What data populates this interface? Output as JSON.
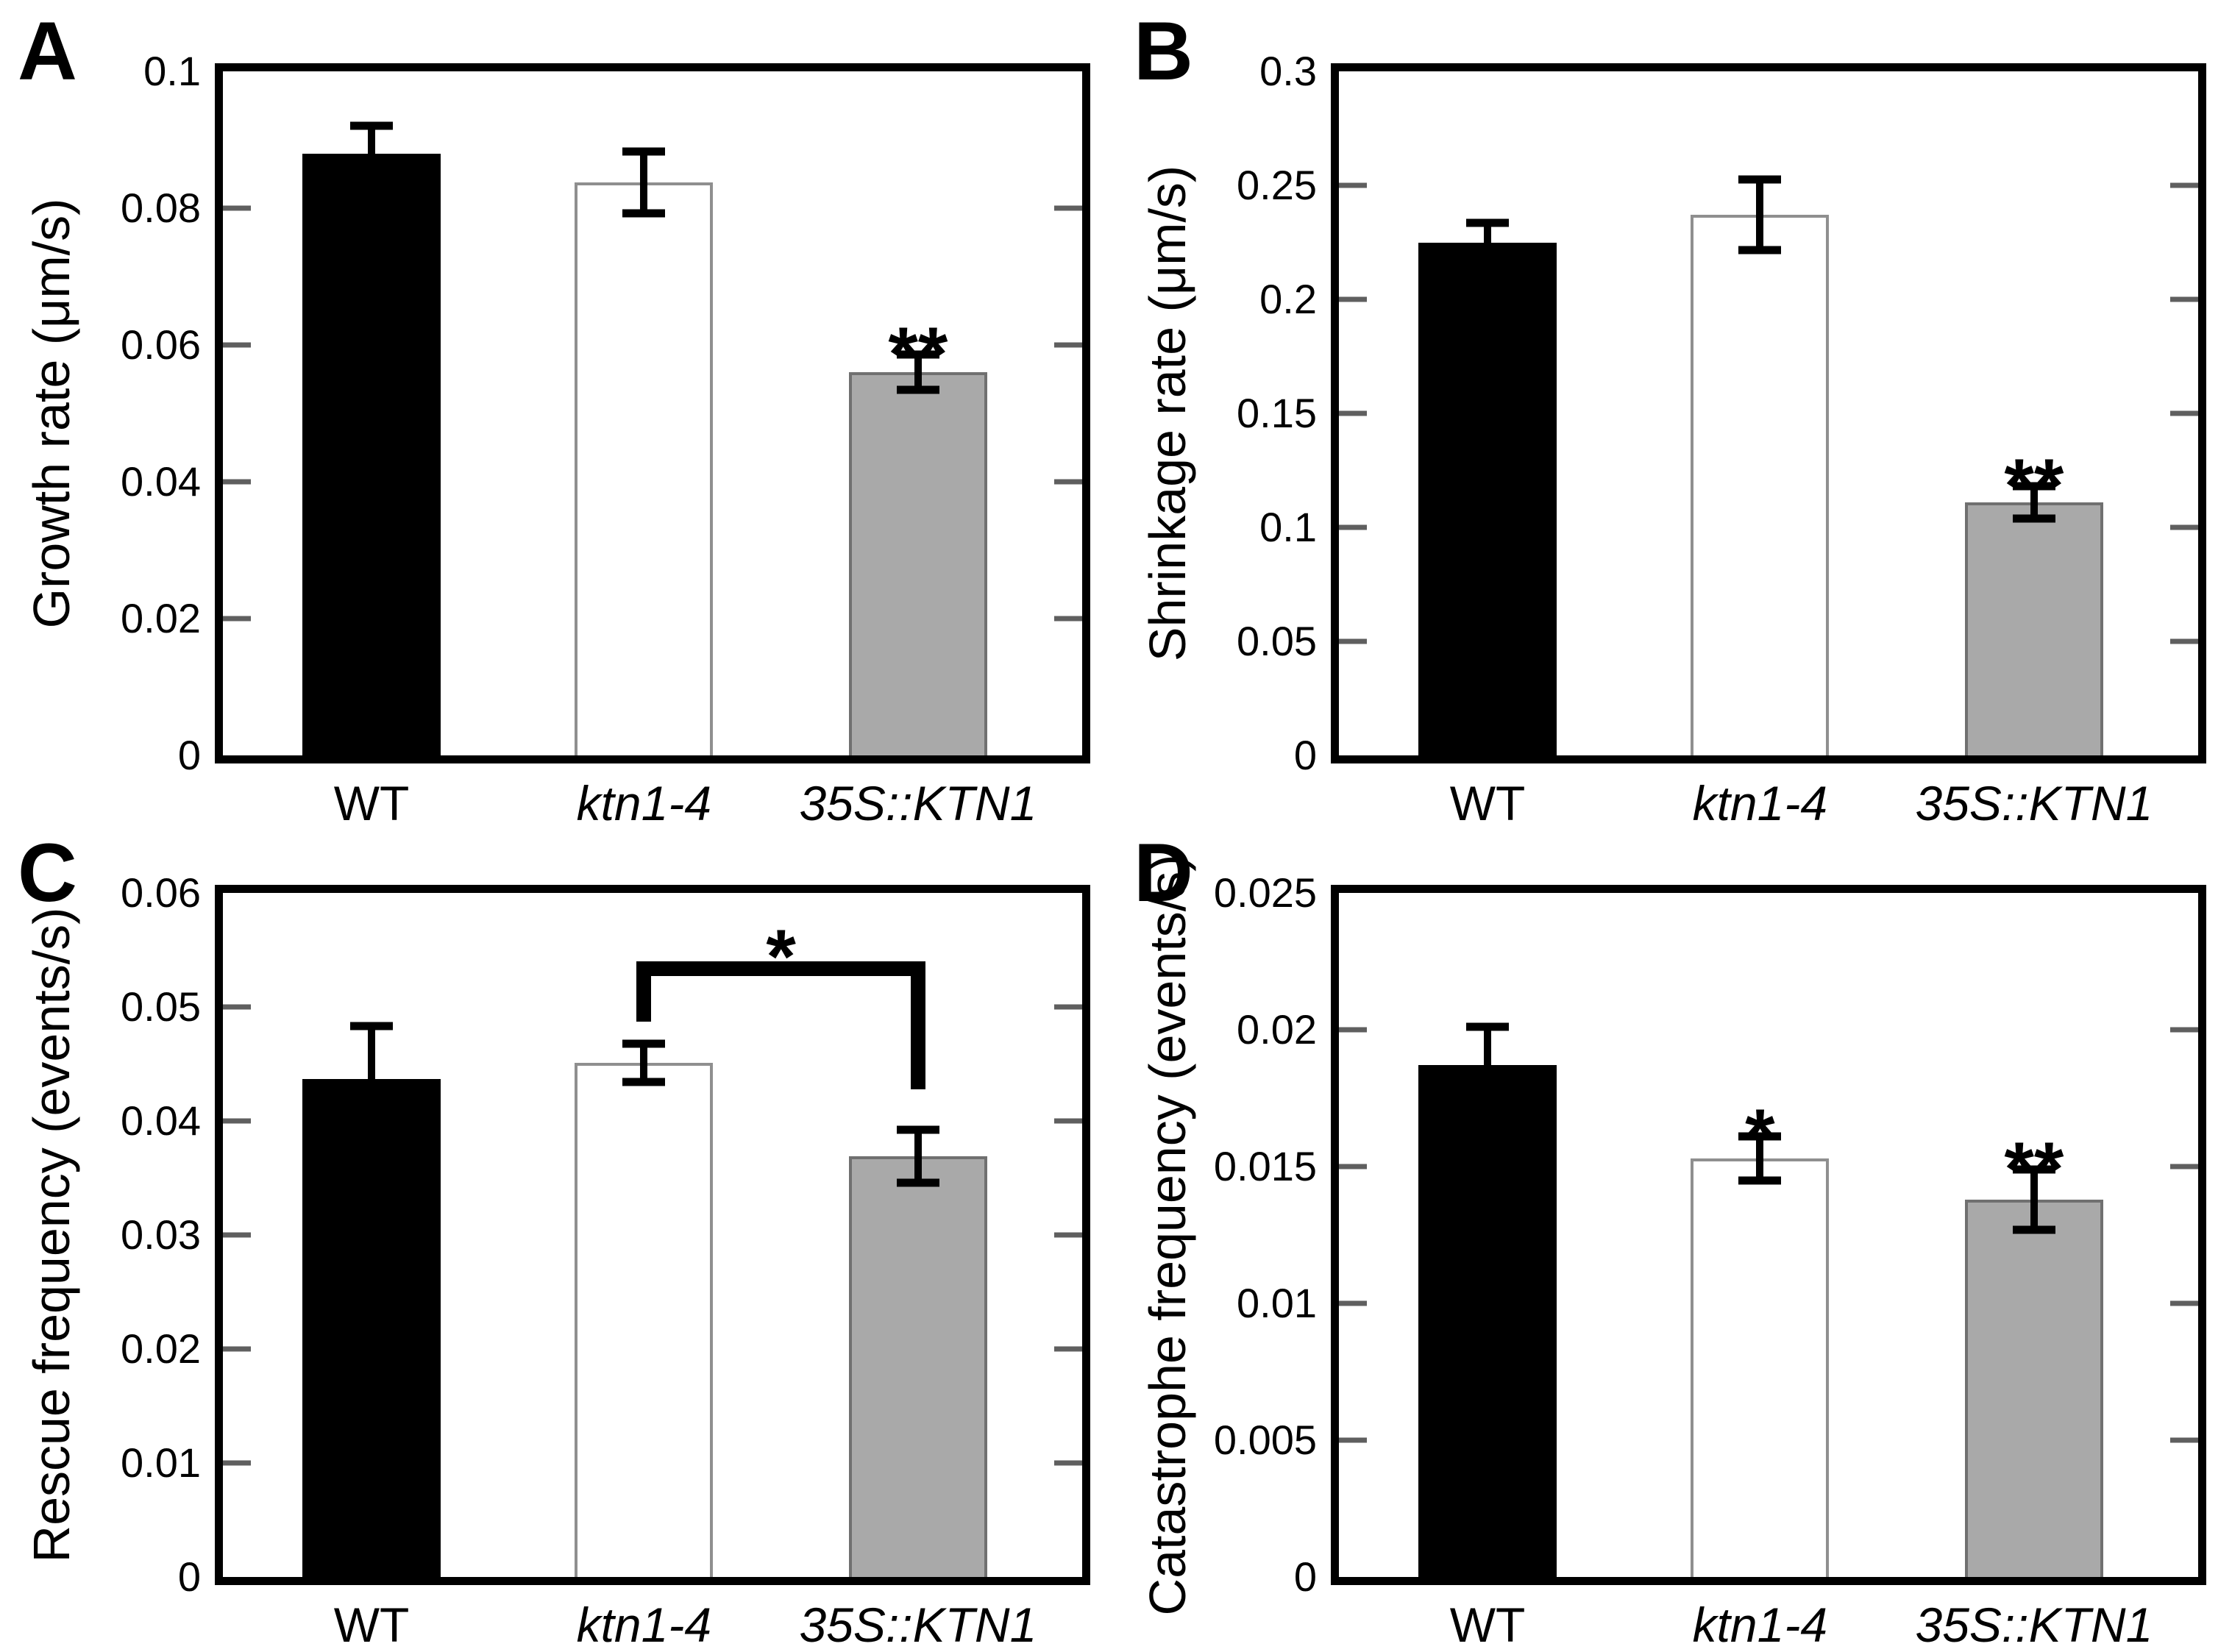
{
  "figure": {
    "background": "#ffffff",
    "frame_color": "#000000",
    "tick_color": "#5f5f5f",
    "bar_fills": {
      "black": "#000000",
      "white": "#ffffff",
      "gray": "#a9a9a9"
    },
    "bar_borders": {
      "white": "#8f8f8f",
      "gray": "#707070"
    }
  },
  "chart_data": [
    {
      "panel": "A",
      "type": "bar",
      "ylabel": "Growth rate (μm/s)",
      "ylim": [
        0,
        0.1
      ],
      "yticks": [
        0,
        0.02,
        0.04,
        0.06,
        0.08,
        0.1
      ],
      "ytick_labels": [
        "0",
        "0.02",
        "0.04",
        "0.06",
        "0.08",
        "0.1"
      ],
      "categories": [
        "WT",
        "ktn1-4",
        "35S::KTN1"
      ],
      "categories_italic": [
        false,
        true,
        true
      ],
      "grid": false,
      "legend": null,
      "series": [
        {
          "category": "WT",
          "value": 0.088,
          "err_up": 0.004,
          "err_down": null,
          "fill": "black",
          "sig": ""
        },
        {
          "category": "ktn1-4",
          "value": 0.0838,
          "err_up": 0.0045,
          "err_down": 0.0045,
          "fill": "white",
          "sig": ""
        },
        {
          "category": "35S::KTN1",
          "value": 0.056,
          "err_up": 0.0026,
          "err_down": 0.0026,
          "fill": "gray",
          "sig": "**"
        }
      ]
    },
    {
      "panel": "B",
      "type": "bar",
      "ylabel": "Shrinkage rate (μm/s)",
      "ylim": [
        0,
        0.3
      ],
      "yticks": [
        0,
        0.05,
        0.1,
        0.15,
        0.2,
        0.25,
        0.3
      ],
      "ytick_labels": [
        "0",
        "0.05",
        "0.1",
        "0.15",
        "0.2",
        "0.25",
        "0.3"
      ],
      "categories": [
        "WT",
        "ktn1-4",
        "35S::KTN1"
      ],
      "categories_italic": [
        false,
        true,
        true
      ],
      "grid": false,
      "legend": null,
      "series": [
        {
          "category": "WT",
          "value": 0.225,
          "err_up": 0.0085,
          "err_down": null,
          "fill": "black",
          "sig": ""
        },
        {
          "category": "ktn1-4",
          "value": 0.237,
          "err_up": 0.0155,
          "err_down": 0.0155,
          "fill": "white",
          "sig": ""
        },
        {
          "category": "35S::KTN1",
          "value": 0.111,
          "err_up": 0.007,
          "err_down": 0.007,
          "fill": "gray",
          "sig": "**"
        }
      ]
    },
    {
      "panel": "C",
      "type": "bar",
      "ylabel": "Rescue frequency (events/s)",
      "ylim": [
        0,
        0.06
      ],
      "yticks": [
        0,
        0.01,
        0.02,
        0.03,
        0.04,
        0.05,
        0.06
      ],
      "ytick_labels": [
        "0",
        "0.01",
        "0.02",
        "0.03",
        "0.04",
        "0.05",
        "0.06"
      ],
      "categories": [
        "WT",
        "ktn1-4",
        "35S::KTN1"
      ],
      "categories_italic": [
        false,
        true,
        true
      ],
      "grid": false,
      "legend": null,
      "series": [
        {
          "category": "WT",
          "value": 0.0437,
          "err_up": 0.0046,
          "err_down": null,
          "fill": "black",
          "sig": ""
        },
        {
          "category": "ktn1-4",
          "value": 0.0451,
          "err_up": 0.0017,
          "err_down": 0.0017,
          "fill": "white",
          "sig": ""
        },
        {
          "category": "35S::KTN1",
          "value": 0.0369,
          "err_up": 0.0023,
          "err_down": 0.0023,
          "fill": "gray",
          "sig": ""
        }
      ],
      "bracket": {
        "from_category": "ktn1-4",
        "to_category": "35S::KTN1",
        "label": "*",
        "y_line": 0.0527,
        "y_left_end": 0.0487,
        "y_right_end": 0.0428
      }
    },
    {
      "panel": "D",
      "type": "bar",
      "ylabel": "Catastrophe frequency (events/s)",
      "ylim": [
        0,
        0.025
      ],
      "yticks": [
        0,
        0.005,
        0.01,
        0.015,
        0.02,
        0.025
      ],
      "ytick_labels": [
        "0",
        "0.005",
        "0.01",
        "0.015",
        "0.02",
        "0.025"
      ],
      "categories": [
        "WT",
        "ktn1-4",
        "35S::KTN1"
      ],
      "categories_italic": [
        false,
        true,
        true
      ],
      "grid": false,
      "legend": null,
      "series": [
        {
          "category": "WT",
          "value": 0.0187,
          "err_up": 0.0014,
          "err_down": null,
          "fill": "black",
          "sig": ""
        },
        {
          "category": "ktn1-4",
          "value": 0.0153,
          "err_up": 0.0008,
          "err_down": 0.0008,
          "fill": "white",
          "sig": "*"
        },
        {
          "category": "35S::KTN1",
          "value": 0.0138,
          "err_up": 0.0011,
          "err_down": 0.0011,
          "fill": "gray",
          "sig": "**"
        }
      ]
    }
  ]
}
